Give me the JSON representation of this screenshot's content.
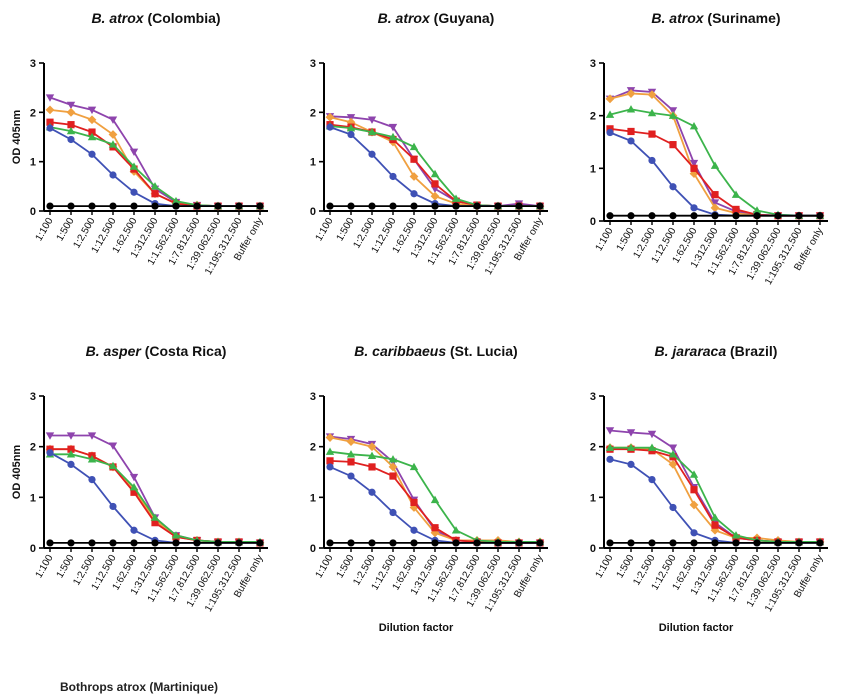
{
  "figure": {
    "ylabel": "OD 405nm",
    "xlabel": "Dilution factor",
    "legend_fragment": "Bothrops atrox (Martinique)"
  },
  "colors": {
    "blue": "#3f51b5",
    "red": "#e02020",
    "orange": "#f0a040",
    "green": "#3cb44b",
    "purple": "#8e44ad",
    "black": "#000000"
  },
  "chart_data": [
    {
      "type": "line",
      "title_italic": "B. atrox",
      "title_rest": " (Colombia)",
      "ylabel": "OD 405nm",
      "xlabel": "",
      "ylim": [
        0,
        3
      ],
      "yticks": [
        0,
        1,
        2,
        3
      ],
      "categories": [
        "1:100",
        "1:500",
        "1:2,500",
        "1:12,500",
        "1:62,500",
        "1:312,500",
        "1:1,562,500",
        "1:7,812,500",
        "1:39,062,500",
        "1:195,312,500",
        "Buffer only"
      ],
      "series": [
        {
          "color": "purple",
          "marker": "triangle-down",
          "values": [
            2.3,
            2.15,
            2.05,
            1.85,
            1.2,
            0.45,
            0.18,
            0.12,
            0.1,
            0.1,
            0.1
          ]
        },
        {
          "color": "orange",
          "marker": "diamond",
          "values": [
            2.05,
            2.0,
            1.85,
            1.55,
            0.8,
            0.35,
            0.15,
            0.12,
            0.1,
            0.1,
            0.1
          ]
        },
        {
          "color": "red",
          "marker": "square",
          "values": [
            1.8,
            1.75,
            1.6,
            1.3,
            0.85,
            0.35,
            0.15,
            0.1,
            0.1,
            0.1,
            0.1
          ]
        },
        {
          "color": "green",
          "marker": "triangle-up",
          "values": [
            1.7,
            1.62,
            1.5,
            1.35,
            0.9,
            0.5,
            0.2,
            0.12,
            0.1,
            0.1,
            0.1
          ]
        },
        {
          "color": "blue",
          "marker": "circle",
          "values": [
            1.68,
            1.45,
            1.15,
            0.73,
            0.38,
            0.15,
            0.1,
            0.1,
            0.1,
            0.1,
            0.1
          ]
        },
        {
          "color": "black",
          "marker": "circle",
          "values": [
            0.1,
            0.1,
            0.1,
            0.1,
            0.1,
            0.1,
            0.1,
            0.1,
            0.1,
            0.1,
            0.1
          ]
        }
      ]
    },
    {
      "type": "line",
      "title_italic": "B. atrox",
      "title_rest": " (Guyana)",
      "ylabel": "",
      "xlabel": "",
      "ylim": [
        0,
        3
      ],
      "yticks": [
        0,
        1,
        2,
        3
      ],
      "categories": [
        "1:100",
        "1:500",
        "1:2,500",
        "1:12,500",
        "1:62,500",
        "1:312,500",
        "1:1,562,500",
        "1:7,812,500",
        "1:39,062,500",
        "1:195,312,500",
        "Buffer only"
      ],
      "series": [
        {
          "color": "purple",
          "marker": "triangle-down",
          "values": [
            1.92,
            1.9,
            1.85,
            1.7,
            1.05,
            0.45,
            0.2,
            0.12,
            0.1,
            0.15,
            0.1
          ]
        },
        {
          "color": "orange",
          "marker": "diamond",
          "values": [
            1.9,
            1.8,
            1.6,
            1.4,
            0.7,
            0.3,
            0.15,
            0.1,
            0.1,
            0.1,
            0.1
          ]
        },
        {
          "color": "red",
          "marker": "square",
          "values": [
            1.75,
            1.7,
            1.6,
            1.45,
            1.05,
            0.55,
            0.2,
            0.12,
            0.1,
            0.1,
            0.1
          ]
        },
        {
          "color": "green",
          "marker": "triangle-up",
          "values": [
            1.72,
            1.68,
            1.6,
            1.5,
            1.3,
            0.75,
            0.25,
            0.12,
            0.1,
            0.1,
            0.1
          ]
        },
        {
          "color": "blue",
          "marker": "circle",
          "values": [
            1.7,
            1.55,
            1.15,
            0.7,
            0.35,
            0.15,
            0.1,
            0.1,
            0.1,
            0.1,
            0.1
          ]
        },
        {
          "color": "black",
          "marker": "circle",
          "values": [
            0.1,
            0.1,
            0.1,
            0.1,
            0.1,
            0.1,
            0.1,
            0.1,
            0.1,
            0.1,
            0.1
          ]
        }
      ]
    },
    {
      "type": "line",
      "title_italic": "B. atrox",
      "title_rest": " (Suriname)",
      "ylabel": "",
      "xlabel": "",
      "ylim": [
        0,
        3
      ],
      "yticks": [
        0,
        1,
        2,
        3
      ],
      "categories": [
        "1:100",
        "1:500",
        "1:2,500",
        "1:12,500",
        "1:62,500",
        "1:312,500",
        "1:1,562,500",
        "1:7,812,500",
        "1:39,062,500",
        "1:195,312,500",
        "Buffer only"
      ],
      "series": [
        {
          "color": "purple",
          "marker": "triangle-down",
          "values": [
            2.32,
            2.48,
            2.45,
            2.1,
            1.1,
            0.35,
            0.18,
            0.12,
            0.1,
            0.1,
            0.1
          ]
        },
        {
          "color": "orange",
          "marker": "diamond",
          "values": [
            2.32,
            2.42,
            2.4,
            2.0,
            0.9,
            0.25,
            0.15,
            0.1,
            0.1,
            0.1,
            0.1
          ]
        },
        {
          "color": "red",
          "marker": "square",
          "values": [
            1.75,
            1.7,
            1.65,
            1.45,
            1.0,
            0.5,
            0.22,
            0.12,
            0.1,
            0.1,
            0.1
          ]
        },
        {
          "color": "green",
          "marker": "triangle-up",
          "values": [
            2.02,
            2.12,
            2.05,
            2.0,
            1.8,
            1.05,
            0.5,
            0.2,
            0.12,
            0.1,
            0.1
          ]
        },
        {
          "color": "blue",
          "marker": "circle",
          "values": [
            1.68,
            1.52,
            1.15,
            0.65,
            0.25,
            0.12,
            0.1,
            0.1,
            0.1,
            0.1,
            0.1
          ]
        },
        {
          "color": "black",
          "marker": "circle",
          "values": [
            0.1,
            0.1,
            0.1,
            0.1,
            0.1,
            0.1,
            0.1,
            0.1,
            0.1,
            0.1,
            0.1
          ]
        }
      ]
    },
    {
      "type": "line",
      "title_italic": "B. asper",
      "title_rest": " (Costa Rica)",
      "ylabel": "OD 405nm",
      "xlabel": "",
      "ylim": [
        0,
        3
      ],
      "yticks": [
        0,
        1,
        2,
        3
      ],
      "categories": [
        "1:100",
        "1:500",
        "1:2,500",
        "1:12,500",
        "1:62,500",
        "1:312,500",
        "1:1,562,500",
        "1:7,812,500",
        "1:39,062,500",
        "1:195,312,500",
        "Buffer only"
      ],
      "series": [
        {
          "color": "purple",
          "marker": "triangle-down",
          "values": [
            2.22,
            2.22,
            2.22,
            2.02,
            1.4,
            0.6,
            0.25,
            0.15,
            0.12,
            0.12,
            0.1
          ]
        },
        {
          "color": "orange",
          "marker": "diamond",
          "values": [
            1.95,
            1.95,
            1.82,
            1.6,
            1.15,
            0.55,
            0.22,
            0.15,
            0.12,
            0.12,
            0.1
          ]
        },
        {
          "color": "red",
          "marker": "square",
          "values": [
            1.95,
            1.95,
            1.82,
            1.6,
            1.1,
            0.5,
            0.22,
            0.15,
            0.12,
            0.12,
            0.1
          ]
        },
        {
          "color": "green",
          "marker": "triangle-up",
          "values": [
            1.85,
            1.85,
            1.75,
            1.62,
            1.2,
            0.6,
            0.25,
            0.15,
            0.12,
            0.12,
            0.12
          ]
        },
        {
          "color": "blue",
          "marker": "circle",
          "values": [
            1.88,
            1.65,
            1.35,
            0.82,
            0.35,
            0.15,
            0.1,
            0.1,
            0.1,
            0.1,
            0.1
          ]
        },
        {
          "color": "black",
          "marker": "circle",
          "values": [
            0.1,
            0.1,
            0.1,
            0.1,
            0.1,
            0.1,
            0.1,
            0.1,
            0.1,
            0.1,
            0.1
          ]
        }
      ]
    },
    {
      "type": "line",
      "title_italic": "B. caribbaeus",
      "title_rest": " (St. Lucia)",
      "ylabel": "",
      "xlabel": "Dilution factor",
      "ylim": [
        0,
        3
      ],
      "yticks": [
        0,
        1,
        2,
        3
      ],
      "categories": [
        "1:100",
        "1:500",
        "1:2,500",
        "1:12,500",
        "1:62,500",
        "1:312,500",
        "1:1,562,500",
        "1:7,812,500",
        "1:39,062,500",
        "1:195,312,500",
        "Buffer only"
      ],
      "series": [
        {
          "color": "purple",
          "marker": "triangle-down",
          "values": [
            2.2,
            2.15,
            2.05,
            1.7,
            0.95,
            0.35,
            0.15,
            0.12,
            0.1,
            0.1,
            0.1
          ]
        },
        {
          "color": "orange",
          "marker": "diamond",
          "values": [
            2.18,
            2.1,
            2.0,
            1.6,
            0.8,
            0.3,
            0.15,
            0.15,
            0.15,
            0.12,
            0.12
          ]
        },
        {
          "color": "red",
          "marker": "square",
          "values": [
            1.72,
            1.7,
            1.6,
            1.42,
            0.9,
            0.4,
            0.15,
            0.12,
            0.1,
            0.1,
            0.1
          ]
        },
        {
          "color": "green",
          "marker": "triangle-up",
          "values": [
            1.9,
            1.85,
            1.82,
            1.75,
            1.6,
            0.95,
            0.35,
            0.15,
            0.12,
            0.12,
            0.12
          ]
        },
        {
          "color": "blue",
          "marker": "circle",
          "values": [
            1.6,
            1.42,
            1.1,
            0.7,
            0.35,
            0.15,
            0.1,
            0.1,
            0.1,
            0.1,
            0.1
          ]
        },
        {
          "color": "black",
          "marker": "circle",
          "values": [
            0.1,
            0.1,
            0.1,
            0.1,
            0.1,
            0.1,
            0.1,
            0.1,
            0.1,
            0.1,
            0.1
          ]
        }
      ]
    },
    {
      "type": "line",
      "title_italic": "B. jararaca",
      "title_rest": " (Brazil)",
      "ylabel": "",
      "xlabel": "Dilution factor",
      "ylim": [
        0,
        3
      ],
      "yticks": [
        0,
        1,
        2,
        3
      ],
      "categories": [
        "1:100",
        "1:500",
        "1:2,500",
        "1:12,500",
        "1:62,500",
        "1:312,500",
        "1:1,562,500",
        "1:7,812,500",
        "1:39,062,500",
        "1:195,312,500",
        "Buffer only"
      ],
      "series": [
        {
          "color": "purple",
          "marker": "triangle-down",
          "values": [
            2.32,
            2.28,
            2.25,
            1.98,
            1.2,
            0.5,
            0.2,
            0.15,
            0.12,
            0.12,
            0.12
          ]
        },
        {
          "color": "orange",
          "marker": "diamond",
          "values": [
            1.98,
            1.98,
            1.95,
            1.65,
            0.85,
            0.35,
            0.2,
            0.2,
            0.15,
            0.12,
            0.12
          ]
        },
        {
          "color": "red",
          "marker": "square",
          "values": [
            1.95,
            1.95,
            1.92,
            1.8,
            1.15,
            0.45,
            0.2,
            0.15,
            0.12,
            0.12,
            0.12
          ]
        },
        {
          "color": "green",
          "marker": "triangle-up",
          "values": [
            1.98,
            1.98,
            1.98,
            1.85,
            1.45,
            0.6,
            0.25,
            0.15,
            0.12,
            0.12,
            0.12
          ]
        },
        {
          "color": "blue",
          "marker": "circle",
          "values": [
            1.75,
            1.65,
            1.35,
            0.8,
            0.3,
            0.15,
            0.1,
            0.1,
            0.1,
            0.1,
            0.1
          ]
        },
        {
          "color": "black",
          "marker": "circle",
          "values": [
            0.1,
            0.1,
            0.1,
            0.1,
            0.1,
            0.1,
            0.1,
            0.1,
            0.1,
            0.1,
            0.1
          ]
        }
      ]
    }
  ]
}
